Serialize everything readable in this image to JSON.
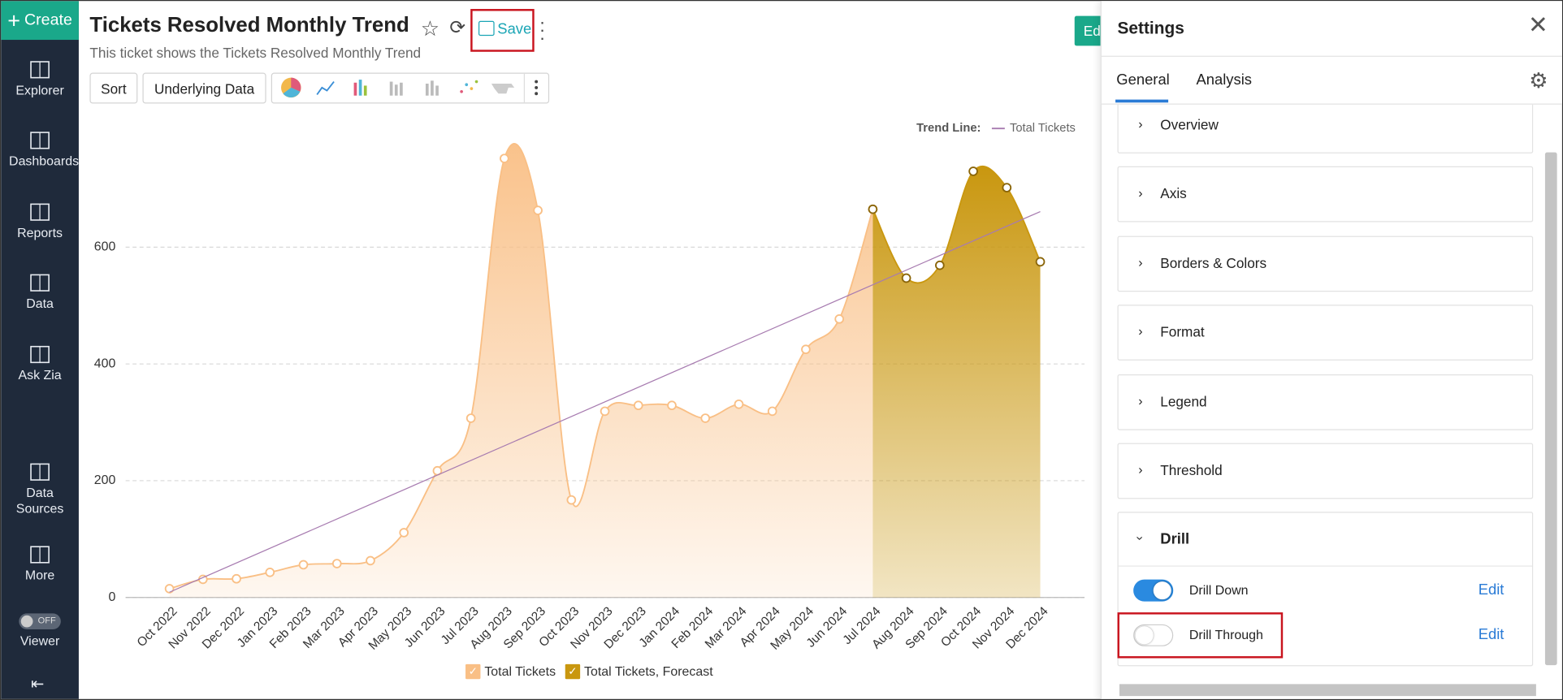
{
  "sidebar": {
    "create": "Create",
    "items": [
      "Explorer",
      "Dashboards",
      "Reports",
      "Data",
      "Ask Zia",
      "Data Sources",
      "More"
    ],
    "viewer": {
      "toggle": "OFF",
      "label": "Viewer"
    }
  },
  "header": {
    "title": "Tickets Resolved Monthly Trend",
    "save": "Save",
    "subtitle": "This ticket shows the Tickets Resolved Monthly Trend",
    "edit": "Ed"
  },
  "toolbar": {
    "sort": "Sort",
    "underlying_data": "Underlying Data"
  },
  "chart_data": {
    "type": "area",
    "categories": [
      "Oct 2022",
      "Nov 2022",
      "Dec 2022",
      "Jan 2023",
      "Feb 2023",
      "Mar 2023",
      "Apr 2023",
      "May 2023",
      "Jun 2023",
      "Jul 2023",
      "Aug 2023",
      "Sep 2023",
      "Oct 2023",
      "Nov 2023",
      "Dec 2023",
      "Jan 2024",
      "Feb 2024",
      "Mar 2024",
      "Apr 2024",
      "May 2024",
      "Jun 2024",
      "Jul 2024",
      "Aug 2024",
      "Sep 2024",
      "Oct 2024",
      "Nov 2024",
      "Dec 2024"
    ],
    "series": [
      {
        "name": "Total Tickets",
        "color": "#f9bf85",
        "values": [
          15,
          31,
          32,
          43,
          56,
          58,
          63,
          111,
          217,
          307,
          752,
          663,
          167,
          319,
          329,
          329,
          307,
          331,
          319,
          425,
          477,
          665,
          null,
          null,
          null,
          null,
          null
        ]
      },
      {
        "name": "Total Tickets, Forecast",
        "color": "#c9970f",
        "values": [
          null,
          null,
          null,
          null,
          null,
          null,
          null,
          null,
          null,
          null,
          null,
          null,
          null,
          null,
          null,
          null,
          null,
          null,
          null,
          null,
          null,
          665,
          547,
          569,
          730,
          702,
          575
        ]
      }
    ],
    "trend_line": {
      "label": "Trend Line:",
      "name": "Total Tickets",
      "color": "#a77bb0",
      "values": [
        9,
        661
      ]
    },
    "ylim": [
      0,
      800
    ],
    "yticks": [
      0,
      200,
      400,
      600
    ],
    "grid": true
  },
  "settings": {
    "title": "Settings",
    "tabs": [
      "General",
      "Analysis"
    ],
    "sections": [
      "Overview",
      "Axis",
      "Borders & Colors",
      "Format",
      "Legend",
      "Threshold",
      "Drill"
    ],
    "drill": [
      {
        "label": "Drill Down",
        "action": "Edit",
        "enabled": true
      },
      {
        "label": "Drill Through",
        "action": "Edit",
        "enabled": false
      }
    ]
  }
}
